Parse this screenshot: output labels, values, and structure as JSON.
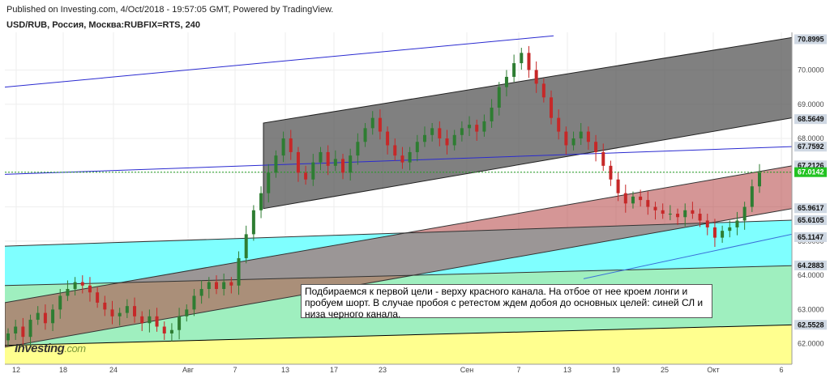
{
  "header": {
    "publish_line": "Published on Investing.com, 4/Oct/2018 - 19:57:05 GMT, Powered by TradingView.",
    "symbol_line": "USD/RUB, Россия, Москва:RUBFIX=RTS, 240"
  },
  "note": "Подбираемся к первой цели - верху красного канала. На отбое от нее кроем лонги и пробуем шорт. В случае пробоя с ретестом ждем добоя до основных целей: синей СЛ и низа черного канала.",
  "logo": {
    "main": "Investing",
    "suffix": ".com"
  },
  "colors": {
    "candle_up": "#2e7d32",
    "candle_down": "#c62828",
    "black_channel": "#555555",
    "red_channel": "#b34040",
    "cyan_zone": "#7fffff",
    "green_zone": "#9fefbf",
    "yellow_zone": "#ffff8f",
    "blue_line": "#2a2ad0",
    "current_price_badge": "#22c322"
  },
  "chart_data": {
    "type": "candlestick",
    "x_tick_labels": [
      "12",
      "18",
      "24",
      "Авг",
      "7",
      "13",
      "17",
      "23",
      "Сен",
      "7",
      "13",
      "19",
      "25",
      "Окт",
      "6"
    ],
    "y_range": [
      61.4,
      71.1
    ],
    "y_tick_labels": [
      "62.0000",
      "63.0000",
      "64.0000",
      "65.0000",
      "66.0000",
      "67.0000",
      "68.0000",
      "69.0000",
      "70.0000"
    ],
    "price_labels": [
      {
        "value": 70.8995,
        "text": "70.8995"
      },
      {
        "value": 68.5649,
        "text": "68.5649"
      },
      {
        "value": 67.7592,
        "text": "67.7592"
      },
      {
        "value": 67.2126,
        "text": "67.2126"
      },
      {
        "value": 67.0142,
        "text": "67.0142",
        "current": true
      },
      {
        "value": 65.9617,
        "text": "65.9617"
      },
      {
        "value": 65.6105,
        "text": "65.6105"
      },
      {
        "value": 65.1147,
        "text": "65.1147"
      },
      {
        "value": 64.2883,
        "text": "64.2883"
      },
      {
        "value": 62.5528,
        "text": "62.5528"
      }
    ],
    "last_price": 67.0142,
    "closes": [
      62.3,
      62.5,
      62.2,
      62.7,
      62.9,
      62.6,
      63.0,
      63.4,
      63.6,
      63.8,
      63.7,
      63.5,
      63.2,
      63.0,
      62.8,
      62.9,
      63.1,
      62.8,
      62.6,
      62.8,
      62.5,
      62.3,
      62.4,
      62.8,
      63.0,
      63.4,
      63.6,
      63.8,
      63.6,
      63.8,
      63.7,
      64.5,
      65.2,
      65.9,
      66.4,
      67.0,
      67.5,
      68.0,
      67.6,
      67.0,
      66.8,
      67.3,
      67.6,
      67.2,
      67.4,
      67.0,
      67.5,
      67.9,
      68.3,
      68.6,
      68.2,
      67.8,
      67.5,
      67.3,
      67.6,
      67.9,
      68.1,
      68.3,
      68.0,
      67.8,
      68.1,
      68.3,
      68.4,
      68.2,
      68.5,
      68.9,
      69.5,
      69.8,
      70.2,
      70.5,
      70.0,
      69.6,
      69.2,
      68.6,
      68.2,
      67.8,
      68.0,
      68.2,
      67.9,
      67.6,
      67.2,
      66.8,
      66.4,
      66.1,
      66.3,
      66.2,
      66.0,
      65.9,
      65.8,
      65.8,
      65.7,
      65.9,
      65.8,
      65.6,
      65.4,
      65.1,
      65.3,
      65.4,
      65.6,
      66.0,
      66.6,
      67.0
    ]
  }
}
